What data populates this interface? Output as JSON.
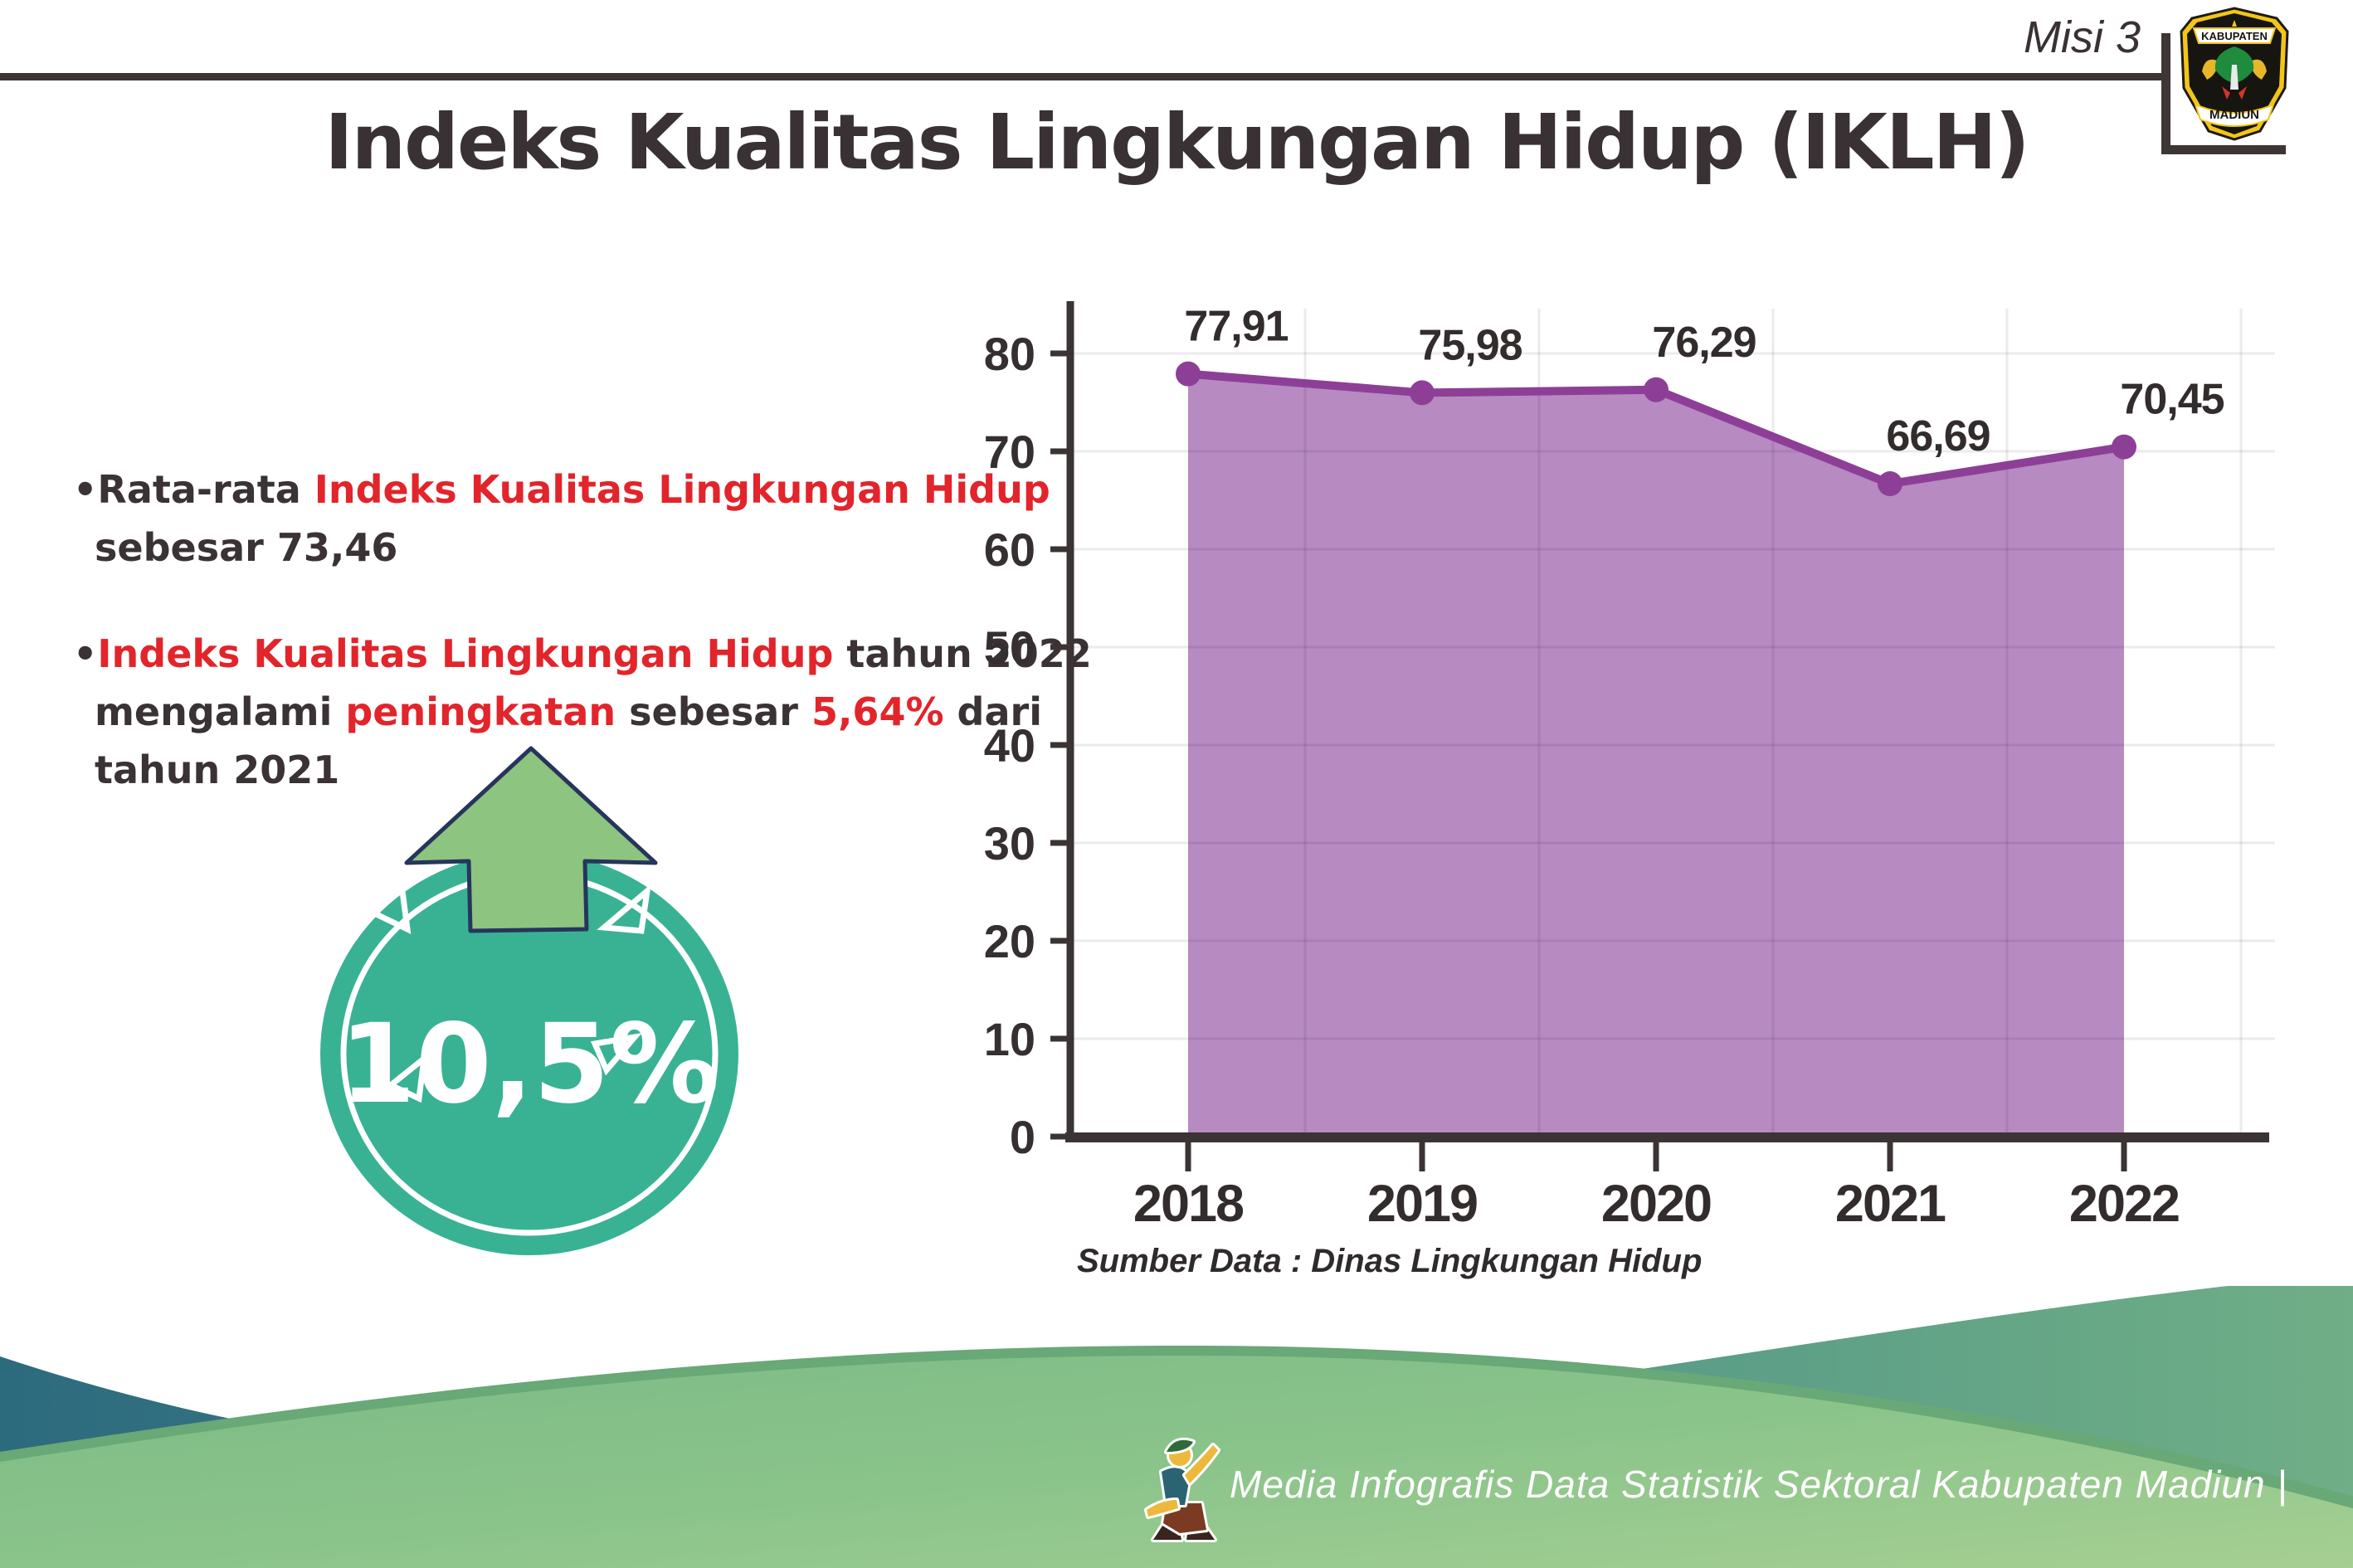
{
  "header": {
    "misi_label": "Misi 3",
    "logo": {
      "top_text": "KABUPATEN",
      "bottom_text": "MADIUN"
    }
  },
  "title": "Indeks Kualitas Lingkungan Hidup (IKLH)",
  "bullet_glyph": "•",
  "bullets": {
    "b1": {
      "line1_dark": "Rata-rata ",
      "line1_red": "Indeks Kualitas Lingkungan Hidup",
      "line2_dark": "sebesar 73,46"
    },
    "b2": {
      "line1_red": "Indeks Kualitas Lingkungan Hidup",
      "line1_dark": " tahun 2022",
      "line2_dark1": "mengalami ",
      "line2_red1": "peningkatan",
      "line2_dark2": " sebesar ",
      "line2_red2": "5,64%",
      "line2_dark3": " dari",
      "line3_dark": "tahun 2021"
    }
  },
  "badge": {
    "value": "10,5%"
  },
  "chart_data": {
    "type": "area",
    "title": "Indeks Kualitas Lingkungan Hidup (IKLH)",
    "categories": [
      "2018",
      "2019",
      "2020",
      "2021",
      "2022"
    ],
    "values": [
      77.91,
      75.98,
      76.29,
      66.69,
      70.45
    ],
    "point_labels": [
      "77,91",
      "75,98",
      "76,29",
      "66,69",
      "70,45"
    ],
    "y_ticks": [
      0,
      10,
      20,
      30,
      40,
      50,
      60,
      70,
      80
    ],
    "ylim": [
      0,
      85
    ],
    "grid": true,
    "legend": "none",
    "area_color": "#b78ac2",
    "line_color": "#8d3f97",
    "axis_color": "#3b3334",
    "source": "Sumber Data : Dinas Lingkungan Hidup"
  },
  "footer": {
    "caption": "Media Infografis Data Statistik Sektoral Kabupaten Madiun |"
  },
  "colors": {
    "accent_red": "#e2242b",
    "text_dark": "#3a3134",
    "badge_teal": "#39b294",
    "badge_arrow_green": "#8dc47f",
    "arrow_outline_navy": "#27355c",
    "footer_teal": "#2c6a7e",
    "footer_green": "#8ac48b"
  }
}
